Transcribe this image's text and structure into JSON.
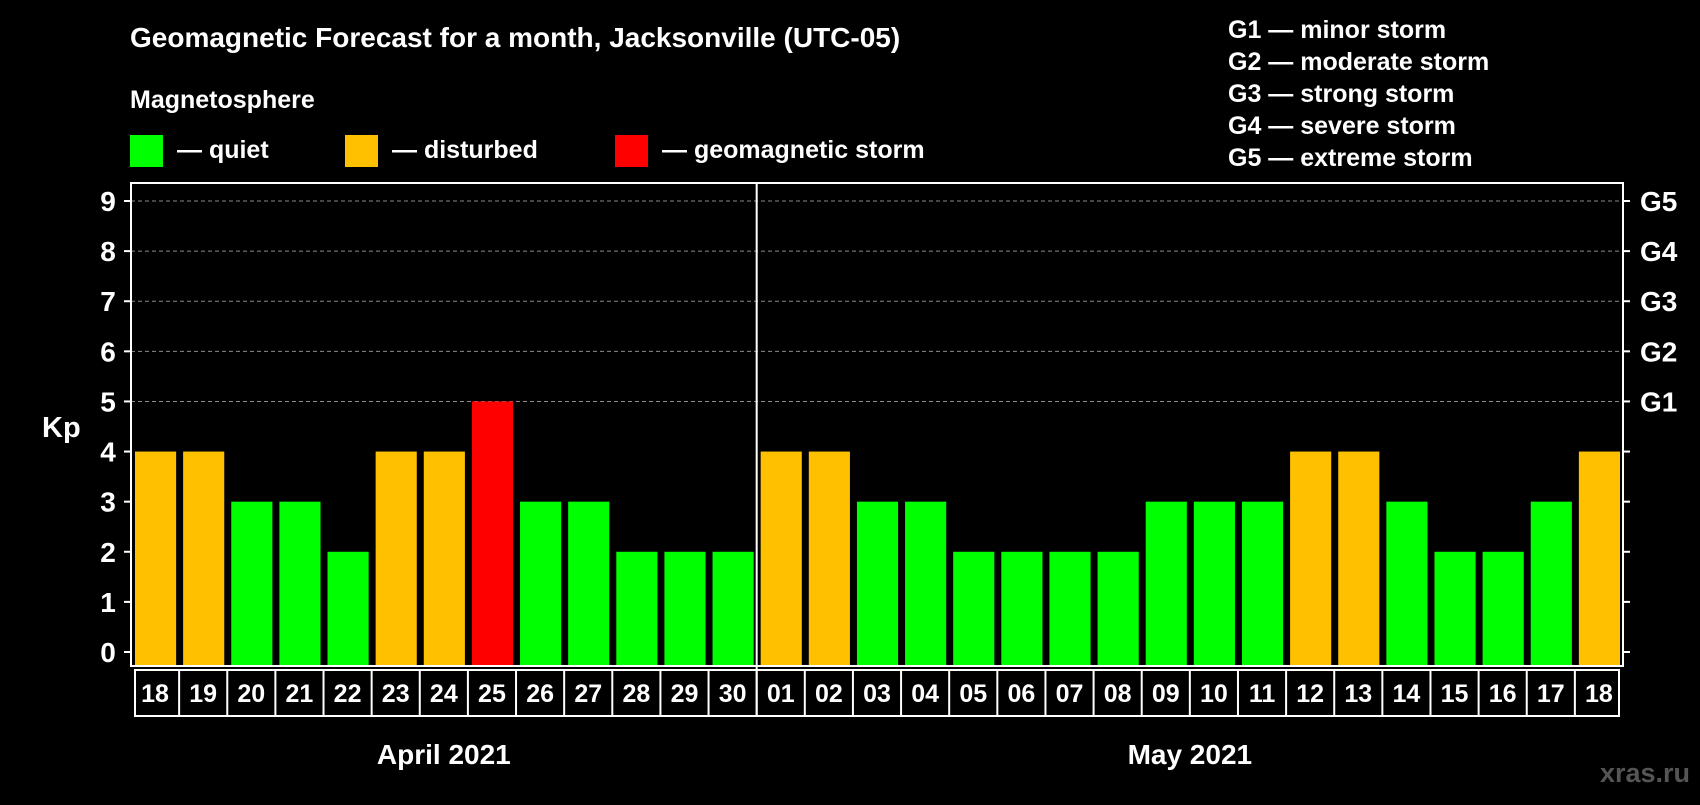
{
  "chart_data": {
    "type": "bar",
    "title": "Geomagnetic Forecast for a month, Jacksonville (UTC-05)",
    "ylabel": "Kp",
    "ylim": [
      0,
      9
    ],
    "yticks": [
      "0",
      "1",
      "2",
      "3",
      "4",
      "5",
      "6",
      "7",
      "8",
      "9"
    ],
    "right_axis_labels": [
      {
        "kp": 5,
        "label": "G1"
      },
      {
        "kp": 6,
        "label": "G2"
      },
      {
        "kp": 7,
        "label": "G3"
      },
      {
        "kp": 8,
        "label": "G4"
      },
      {
        "kp": 9,
        "label": "G5"
      }
    ],
    "categories": [
      "18",
      "19",
      "20",
      "21",
      "22",
      "23",
      "24",
      "25",
      "26",
      "27",
      "28",
      "29",
      "30",
      "01",
      "02",
      "03",
      "04",
      "05",
      "06",
      "07",
      "08",
      "09",
      "10",
      "11",
      "12",
      "13",
      "14",
      "15",
      "16",
      "17",
      "18"
    ],
    "values": [
      4,
      4,
      3,
      3,
      2,
      4,
      4,
      5,
      3,
      3,
      2,
      2,
      2,
      4,
      4,
      3,
      3,
      2,
      2,
      2,
      2,
      3,
      3,
      3,
      4,
      4,
      3,
      2,
      2,
      3,
      4
    ],
    "months": [
      {
        "label": "April 2021",
        "count": 13
      },
      {
        "label": "May 2021",
        "count": 18
      }
    ],
    "grid": true,
    "legend_title": "Magnetosphere",
    "legend": [
      {
        "label": "— quiet",
        "color": "#00ff00"
      },
      {
        "label": "— disturbed",
        "color": "#ffc000"
      },
      {
        "label": "— geomagnetic storm",
        "color": "#ff0000"
      }
    ],
    "storm_scale": [
      "G1 — minor storm",
      "G2 — moderate storm",
      "G3 — strong storm",
      "G4 — severe storm",
      "G5 — extreme storm"
    ],
    "watermark": "xras.ru"
  }
}
